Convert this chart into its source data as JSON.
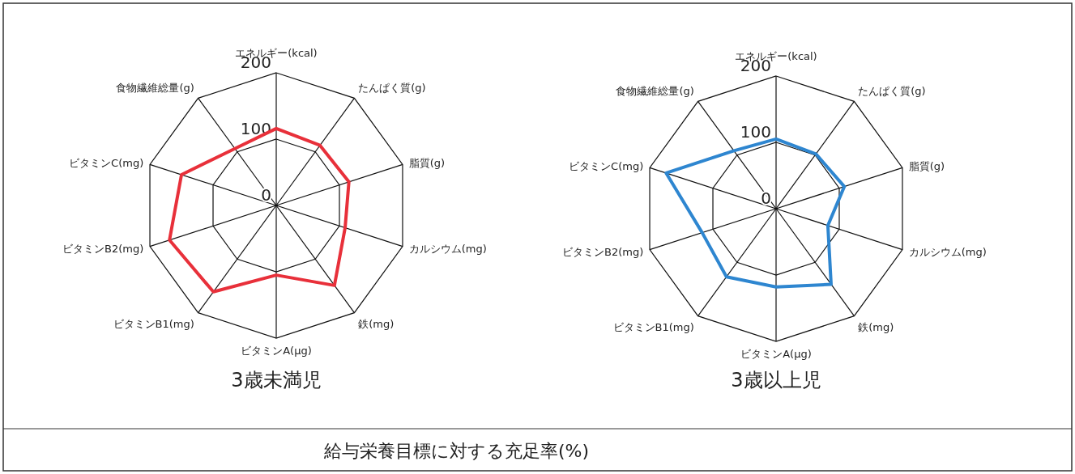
{
  "chart_data": [
    {
      "type": "radar",
      "title": "3歳未満児",
      "categories": [
        "エネルギー(kcal)",
        "たんぱく質(g)",
        "脂質(g)",
        "カルシウム(mg)",
        "鉄(mg)",
        "ビタミンA(μg)",
        "ビタミンB1(mg)",
        "ビタミンB2(mg)",
        "ビタミンC(mg)",
        "食物繊維総量(g)"
      ],
      "series": [
        {
          "color": "#e8303a",
          "values": [
            116,
            112,
            115,
            109,
            149,
            105,
            161,
            169,
            150,
            106
          ]
        }
      ],
      "ylim": [
        0,
        200
      ],
      "yticks": [
        0,
        100,
        200
      ],
      "grid": true,
      "annotations": [
        "給与栄養目標に対する充足率(%)"
      ]
    },
    {
      "type": "radar",
      "title": "3歳以上児",
      "categories": [
        "エネルギー(kcal)",
        "たんぱく質(g)",
        "脂質(g)",
        "カルシウム(mg)",
        "鉄(mg)",
        "ビタミンA(μg)",
        "ビタミンB1(mg)",
        "ビタミンB2(mg)",
        "ビタミンC(mg)",
        "食物繊維総量(g)"
      ],
      "series": [
        {
          "color": "#2e86d0",
          "values": [
            105,
            102,
            108,
            82,
            141,
            118,
            127,
            117,
            174,
            108
          ]
        }
      ],
      "ylim": [
        0,
        200
      ],
      "yticks": [
        0,
        100,
        200
      ],
      "grid": true
    }
  ]
}
